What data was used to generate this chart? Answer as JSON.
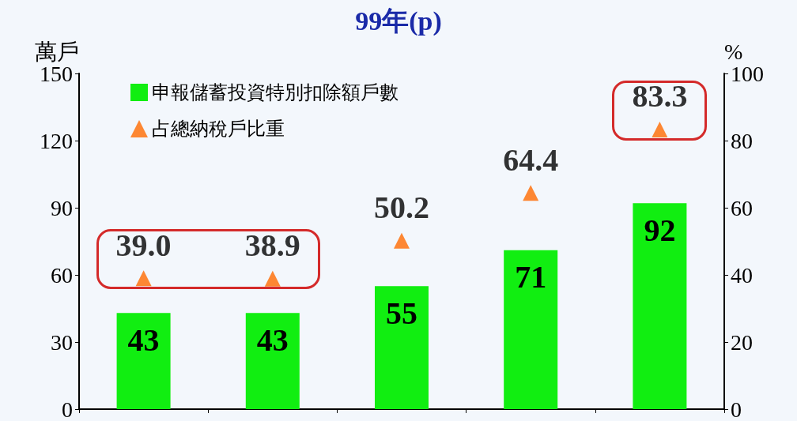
{
  "chart_data": {
    "type": "bar",
    "title": "99年(p)",
    "ylabel": "萬戶",
    "y2label": "%",
    "categories": [
      null,
      null,
      null,
      null,
      null
    ],
    "series": [
      {
        "name": "申報儲蓄投資特別扣除額戶數",
        "color": "#11ee11",
        "values": [
          43,
          43,
          55,
          71,
          92
        ],
        "value_labels": [
          "43",
          "43",
          "55",
          "71",
          "92"
        ]
      },
      {
        "name": "占總納稅戶比重",
        "type": "scatter",
        "axis": "y2",
        "marker": "triangle",
        "color": "#ff6a00",
        "values": [
          39.0,
          38.9,
          50.2,
          64.4,
          83.3
        ],
        "value_labels": [
          "39.0",
          "38.9",
          "50.2",
          "64.4",
          "83.3"
        ]
      }
    ],
    "ylim": [
      0,
      150
    ],
    "yticks": [
      0,
      30,
      60,
      90,
      120,
      150
    ],
    "y2lim": [
      0,
      100
    ],
    "y2ticks": [
      0,
      20,
      40,
      60,
      80,
      100
    ],
    "legend": "top left",
    "grid": false
  }
}
